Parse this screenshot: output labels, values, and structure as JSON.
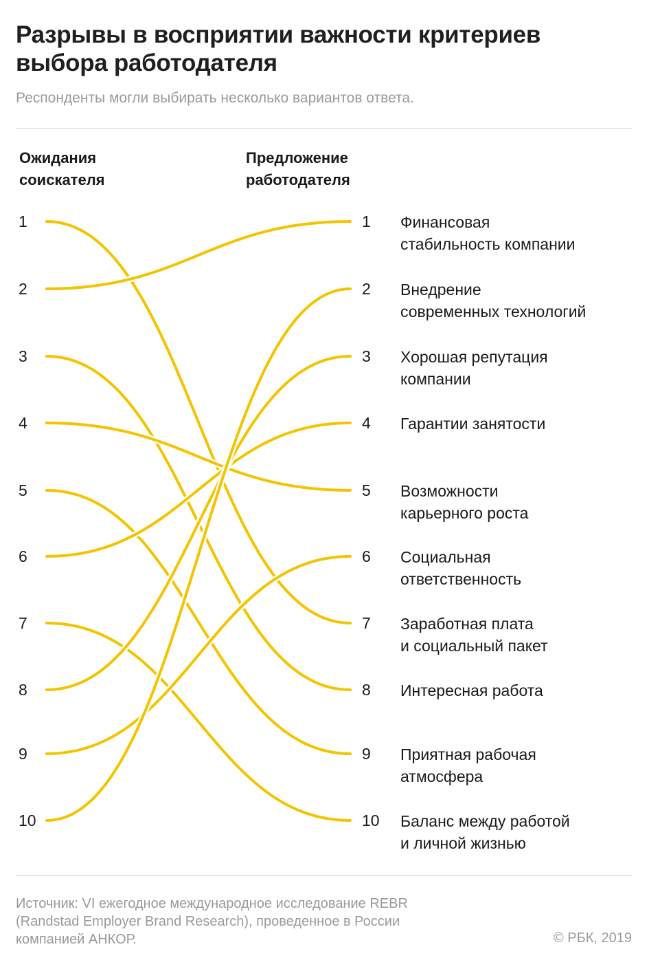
{
  "title": "Разрывы в восприятии важности критериев выбора работодателя",
  "subtitle": "Респонденты могли выбирать несколько вариантов ответа.",
  "headers": {
    "left": [
      "Ожидания",
      "соискателя"
    ],
    "right": [
      "Предложение",
      "работодателя"
    ]
  },
  "source": [
    "Источник: VI ежегодное международное исследование REBR",
    "(Randstad Employer Brand Research), проведенное в России",
    "компанией АНКОР."
  ],
  "copyright": "© РБК, 2019",
  "line_color": "#f5c400",
  "chart_data": {
    "type": "slope",
    "left_axis_label": "Ожидания соискателя",
    "right_axis_label": "Предложение работодателя",
    "ranks": [
      "1",
      "2",
      "3",
      "4",
      "5",
      "6",
      "7",
      "8",
      "9",
      "10"
    ],
    "criteria_by_employer_rank": [
      [
        "Финансовая",
        "стабильность компании"
      ],
      [
        "Внедрение",
        "современных технологий"
      ],
      [
        "Хорошая репутация",
        "компании"
      ],
      [
        "Гарантии занятости"
      ],
      [
        "Возможности",
        "карьерного роста"
      ],
      [
        "Социальная",
        "ответственность"
      ],
      [
        "Заработная плата",
        "и социальный пакет"
      ],
      [
        "Интересная работа"
      ],
      [
        "Приятная рабочая",
        "атмосфера"
      ],
      [
        "Баланс между работой",
        "и личной жизнью"
      ]
    ],
    "links": [
      {
        "candidate_rank": 1,
        "employer_rank": 7
      },
      {
        "candidate_rank": 2,
        "employer_rank": 1
      },
      {
        "candidate_rank": 3,
        "employer_rank": 8
      },
      {
        "candidate_rank": 4,
        "employer_rank": 5
      },
      {
        "candidate_rank": 5,
        "employer_rank": 9
      },
      {
        "candidate_rank": 6,
        "employer_rank": 4
      },
      {
        "candidate_rank": 7,
        "employer_rank": 10
      },
      {
        "candidate_rank": 8,
        "employer_rank": 3
      },
      {
        "candidate_rank": 9,
        "employer_rank": 6
      },
      {
        "candidate_rank": 10,
        "employer_rank": 2
      }
    ]
  }
}
